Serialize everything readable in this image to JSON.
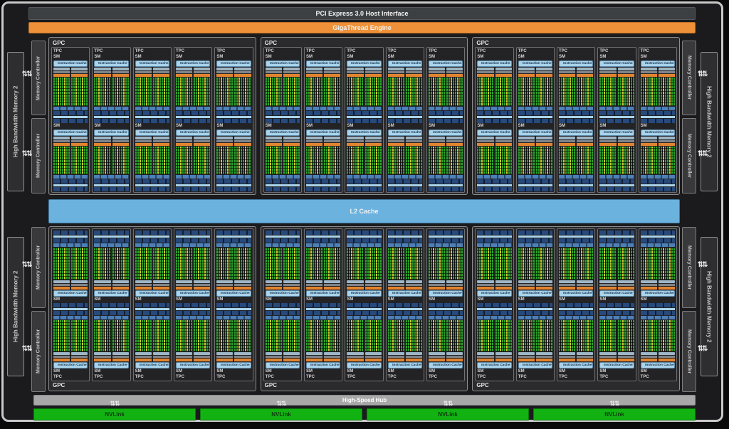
{
  "title_bars": {
    "pci": "PCI Express 3.0 Host Interface",
    "gigathread": "GigaThread Engine",
    "l2": "L2 Cache",
    "hub": "High-Speed Hub"
  },
  "labels": {
    "gpc": "GPC",
    "tpc": "TPC",
    "sm": "SM",
    "instruction_cache": "Instruction Cache"
  },
  "memory": {
    "hbm_label": "High Bandwidth Memory 2",
    "controller_label": "Memory Controller",
    "hbm_count": 4,
    "controller_count": 8,
    "arrow_icon": "⇅⇅"
  },
  "nvlink": {
    "items": [
      "NVLink",
      "NVLink",
      "NVLink",
      "NVLink"
    ],
    "arrow_icon": "⇅⇅"
  },
  "structure": {
    "gpc_count": 6,
    "tpc_per_gpc": 5,
    "sm_per_tpc": 2,
    "top_gpc_count": 3,
    "bottom_gpc_count": 3
  },
  "colors": {
    "gigathread_orange": "#ef9138",
    "l2_blue": "#6cb2df",
    "nvlink_green": "#12b212",
    "hub_gray": "#a8a8a8",
    "instruction_cache_blue": "#a9d3ea",
    "core_green": "#2da32d",
    "core_yellow": "#d2c52e",
    "dispatch_orange": "#e2842f",
    "tex_navy": "#27497b"
  }
}
